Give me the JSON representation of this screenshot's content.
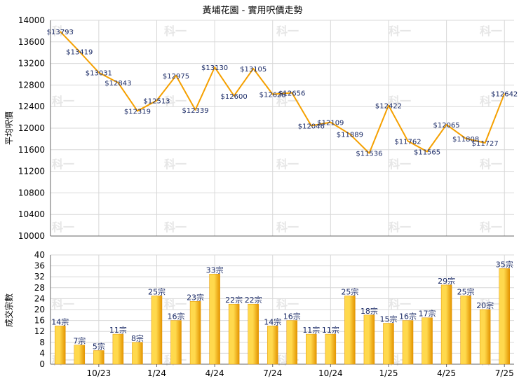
{
  "title": "黃埔花園 - 實用呎價走勢",
  "colors": {
    "line": "#f5a000",
    "bar_light": "#ffd94d",
    "bar_dark": "#e39400",
    "grid": "#d8d8d8",
    "axis": "#666666",
    "text": "#000000",
    "label_blue": "#1a2a66",
    "watermark": "#e6e6e6"
  },
  "watermark_text": "科一",
  "chart_data": [
    {
      "type": "line",
      "title": "黃埔花園 - 實用呎價走勢",
      "ylabel": "平均呎價",
      "ylim": [
        10000,
        14000
      ],
      "yticks": [
        10000,
        10400,
        10800,
        11200,
        11600,
        12000,
        12400,
        12800,
        13200,
        13600,
        14000
      ],
      "grid": true,
      "value_labels": [
        "$13793",
        "$13419",
        "$13031",
        "$12843",
        "$12319",
        "$12513",
        "$12975",
        "$12339",
        "$13130",
        "$12600",
        "$13105",
        "$12628",
        "$12656",
        "$12046",
        "$12109",
        "$11889",
        "$11536",
        "$12422",
        "$11762",
        "$11565",
        "$12065",
        "$11808",
        "$11727",
        "$12642"
      ],
      "series": [
        {
          "values": [
            13793,
            13419,
            13031,
            12843,
            12319,
            12513,
            12975,
            12339,
            13130,
            12600,
            13105,
            12628,
            12656,
            12046,
            12109,
            11889,
            11536,
            12422,
            11762,
            11565,
            12065,
            11808,
            11727,
            12642
          ]
        }
      ]
    },
    {
      "type": "bar",
      "ylabel": "成交宗數",
      "ylim": [
        0,
        40
      ],
      "yticks": [
        0,
        4,
        8,
        12,
        16,
        20,
        24,
        28,
        32,
        36,
        40
      ],
      "grid": true,
      "xtick_labels": [
        "10/23",
        "1/24",
        "4/24",
        "7/24",
        "10/24",
        "1/25",
        "4/25",
        "7/25"
      ],
      "value_labels": [
        "14宗",
        "7宗",
        "5宗",
        "11宗",
        "8宗",
        "25宗",
        "16宗",
        "23宗",
        "33宗",
        "22宗",
        "22宗",
        "14宗",
        "16宗",
        "11宗",
        "11宗",
        "25宗",
        "18宗",
        "15宗",
        "16宗",
        "17宗",
        "29宗",
        "25宗",
        "20宗",
        "35宗"
      ],
      "series": [
        {
          "values": [
            14,
            7,
            5,
            11,
            8,
            25,
            16,
            23,
            33,
            22,
            22,
            14,
            16,
            11,
            11,
            25,
            18,
            15,
            16,
            17,
            29,
            25,
            20,
            35
          ]
        }
      ]
    }
  ]
}
